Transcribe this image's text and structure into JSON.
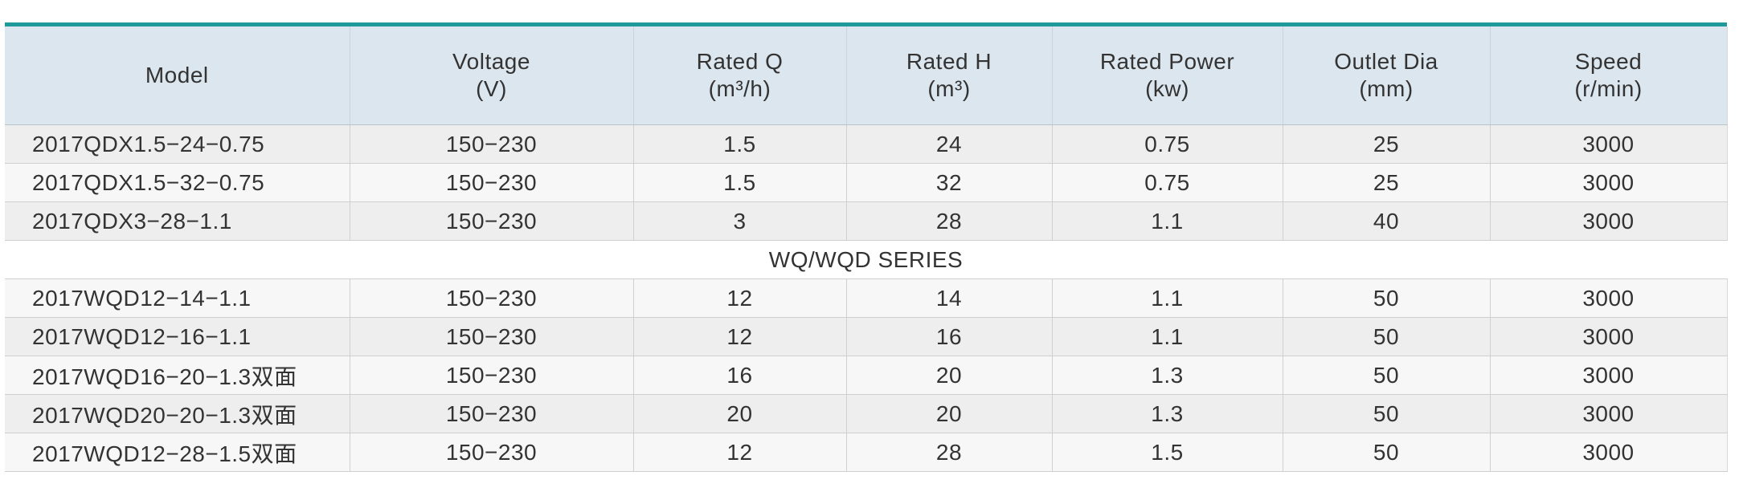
{
  "table": {
    "header": [
      {
        "label": "Model"
      },
      {
        "label": "Voltage",
        "unit": "(V)"
      },
      {
        "label": "Rated Q",
        "unit": "(m³/h)"
      },
      {
        "label": "Rated H",
        "unit": "(m³)"
      },
      {
        "label": "Rated Power",
        "unit": "(kw)"
      },
      {
        "label": "Outlet Dia",
        "unit": "(mm)"
      },
      {
        "label": "Speed",
        "unit": "(r/min)"
      }
    ],
    "groups": [
      {
        "rows": [
          [
            "2017QDX1.5−24−0.75",
            "150−230",
            "1.5",
            "24",
            "0.75",
            "25",
            "3000"
          ],
          [
            "2017QDX1.5−32−0.75",
            "150−230",
            "1.5",
            "32",
            "0.75",
            "25",
            "3000"
          ],
          [
            "2017QDX3−28−1.1",
            "150−230",
            "3",
            "28",
            "1.1",
            "40",
            "3000"
          ]
        ]
      },
      {
        "title": "WQ/WQD SERIES",
        "rows": [
          [
            "2017WQD12−14−1.1",
            "150−230",
            "12",
            "14",
            "1.1",
            "50",
            "3000"
          ],
          [
            "2017WQD12−16−1.1",
            "150−230",
            "12",
            "16",
            "1.1",
            "50",
            "3000"
          ],
          [
            "2017WQD16−20−1.3双面",
            "150−230",
            "16",
            "20",
            "1.3",
            "50",
            "3000"
          ],
          [
            "2017WQD20−20−1.3双面",
            "150−230",
            "20",
            "20",
            "1.3",
            "50",
            "3000"
          ],
          [
            "2017WQD12−28−1.5双面",
            "150−230",
            "12",
            "28",
            "1.5",
            "50",
            "3000"
          ]
        ]
      }
    ]
  }
}
